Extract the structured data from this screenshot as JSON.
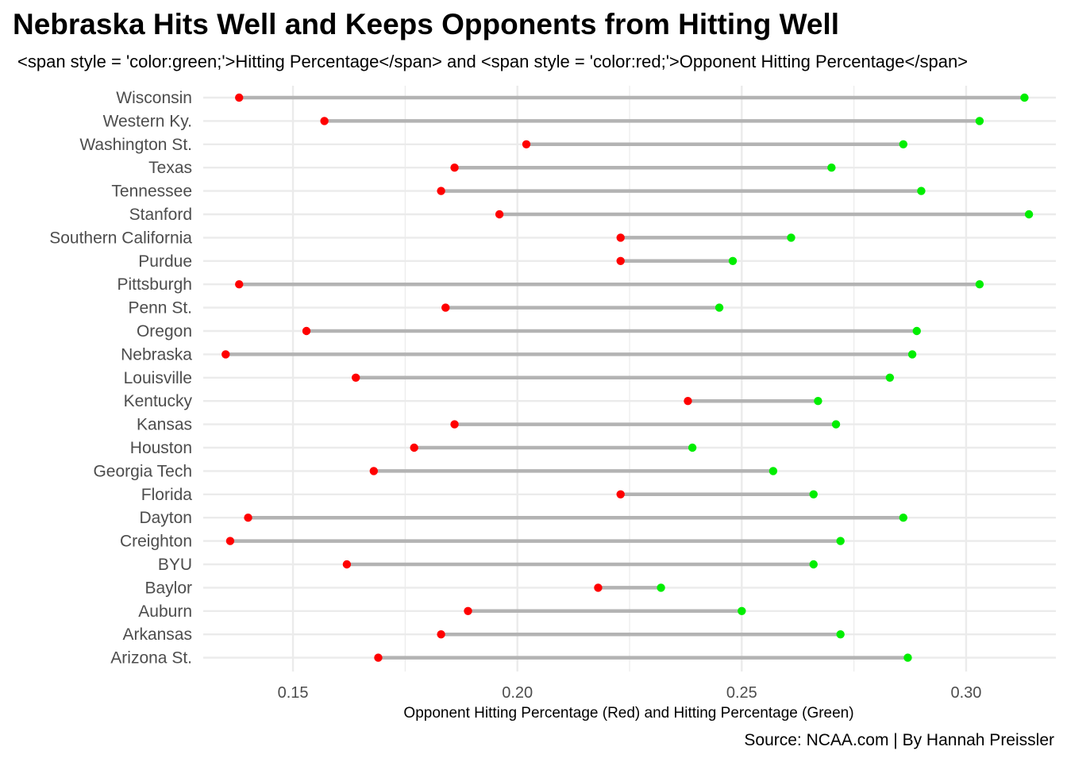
{
  "chart_data": {
    "type": "dumbbell",
    "title": "Nebraska Hits Well and Keeps Opponents from Hitting Well",
    "subtitle": "<span style = 'color:green;'>Hitting Percentage</span> and <span style = 'color:red;'>Opponent Hitting Percentage</span>",
    "xlabel": "Opponent Hitting Percentage (Red) and Hitting Percentage (Green)",
    "ylabel": "",
    "caption": "Source: NCAA.com | By Hannah Preissler",
    "xlim": [
      0.13,
      0.32
    ],
    "xticks": [
      0.15,
      0.2,
      0.25,
      0.3
    ],
    "xtick_labels": [
      "0.15",
      "0.20",
      "0.25",
      "0.30"
    ],
    "grid": true,
    "colors": {
      "opponent": "#ff0000",
      "team": "#00ee00",
      "segment": "#b3b3b3",
      "grid": "#ebebeb"
    },
    "series": [
      {
        "name": "Opponent Hitting Percentage (Red)",
        "key": "opp"
      },
      {
        "name": "Hitting Percentage (Green)",
        "key": "hit"
      }
    ],
    "categories": [
      "Wisconsin",
      "Western Ky.",
      "Washington St.",
      "Texas",
      "Tennessee",
      "Stanford",
      "Southern California",
      "Purdue",
      "Pittsburgh",
      "Penn St.",
      "Oregon",
      "Nebraska",
      "Louisville",
      "Kentucky",
      "Kansas",
      "Houston",
      "Georgia Tech",
      "Florida",
      "Dayton",
      "Creighton",
      "BYU",
      "Baylor",
      "Auburn",
      "Arkansas",
      "Arizona St."
    ],
    "rows": [
      {
        "team": "Wisconsin",
        "opp": 0.138,
        "hit": 0.313
      },
      {
        "team": "Western Ky.",
        "opp": 0.157,
        "hit": 0.303
      },
      {
        "team": "Washington St.",
        "opp": 0.202,
        "hit": 0.286
      },
      {
        "team": "Texas",
        "opp": 0.186,
        "hit": 0.27
      },
      {
        "team": "Tennessee",
        "opp": 0.183,
        "hit": 0.29
      },
      {
        "team": "Stanford",
        "opp": 0.196,
        "hit": 0.314
      },
      {
        "team": "Southern California",
        "opp": 0.223,
        "hit": 0.261
      },
      {
        "team": "Purdue",
        "opp": 0.223,
        "hit": 0.248
      },
      {
        "team": "Pittsburgh",
        "opp": 0.138,
        "hit": 0.303
      },
      {
        "team": "Penn St.",
        "opp": 0.184,
        "hit": 0.245
      },
      {
        "team": "Oregon",
        "opp": 0.153,
        "hit": 0.289
      },
      {
        "team": "Nebraska",
        "opp": 0.135,
        "hit": 0.288
      },
      {
        "team": "Louisville",
        "opp": 0.164,
        "hit": 0.283
      },
      {
        "team": "Kentucky",
        "opp": 0.238,
        "hit": 0.267
      },
      {
        "team": "Kansas",
        "opp": 0.186,
        "hit": 0.271
      },
      {
        "team": "Houston",
        "opp": 0.177,
        "hit": 0.239
      },
      {
        "team": "Georgia Tech",
        "opp": 0.168,
        "hit": 0.257
      },
      {
        "team": "Florida",
        "opp": 0.223,
        "hit": 0.266
      },
      {
        "team": "Dayton",
        "opp": 0.14,
        "hit": 0.286
      },
      {
        "team": "Creighton",
        "opp": 0.136,
        "hit": 0.272
      },
      {
        "team": "BYU",
        "opp": 0.162,
        "hit": 0.266
      },
      {
        "team": "Baylor",
        "opp": 0.218,
        "hit": 0.232
      },
      {
        "team": "Auburn",
        "opp": 0.189,
        "hit": 0.25
      },
      {
        "team": "Arkansas",
        "opp": 0.183,
        "hit": 0.272
      },
      {
        "team": "Arizona St.",
        "opp": 0.169,
        "hit": 0.287
      }
    ]
  }
}
